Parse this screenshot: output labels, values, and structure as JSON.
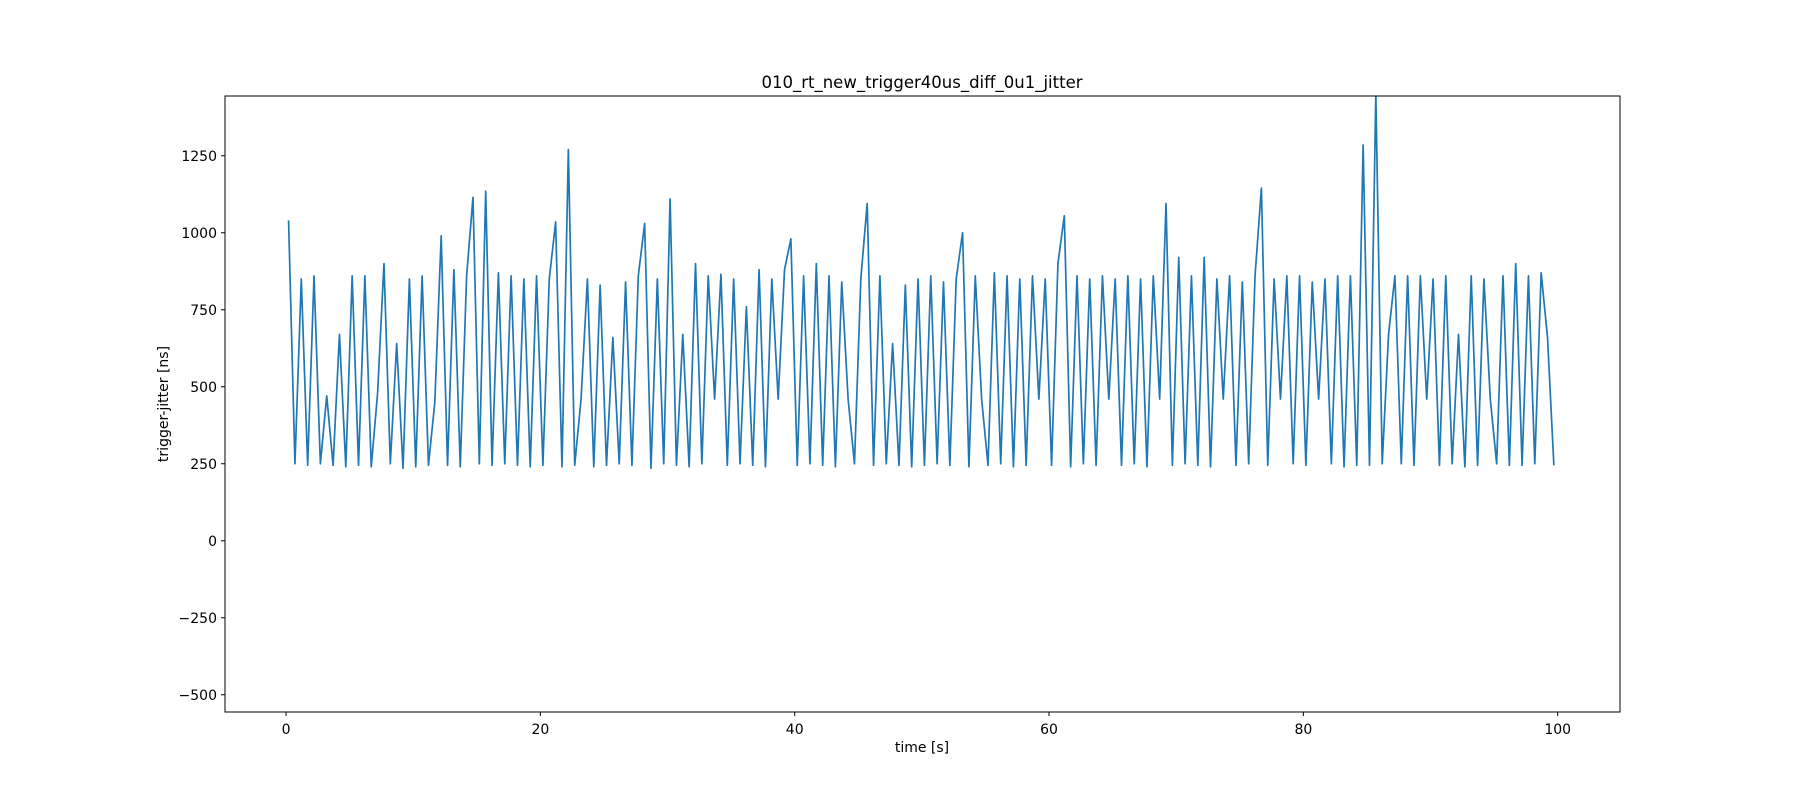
{
  "chart_data": {
    "type": "line",
    "title": "010_rt_new_trigger40us_diff_0u1_jitter",
    "x_label": "time [s]",
    "y_label": "trigger-jitter [ns]",
    "x": [
      0.2,
      0.7,
      1.2,
      1.7,
      2.2,
      2.7,
      3.2,
      3.7,
      4.2,
      4.7,
      5.2,
      5.7,
      6.2,
      6.7,
      7.2,
      7.7,
      8.2,
      8.7,
      9.2,
      9.7,
      10.2,
      10.7,
      11.2,
      11.7,
      12.2,
      12.7,
      13.2,
      13.7,
      14.2,
      14.7,
      15.2,
      15.7,
      16.2,
      16.7,
      17.2,
      17.7,
      18.2,
      18.7,
      19.2,
      19.7,
      20.2,
      20.7,
      21.2,
      21.7,
      22.2,
      22.7,
      23.2,
      23.7,
      24.2,
      24.7,
      25.2,
      25.7,
      26.2,
      26.7,
      27.2,
      27.7,
      28.2,
      28.7,
      29.2,
      29.7,
      30.2,
      30.7,
      31.2,
      31.7,
      32.2,
      32.7,
      33.2,
      33.7,
      34.2,
      34.7,
      35.2,
      35.7,
      36.2,
      36.7,
      37.2,
      37.7,
      38.2,
      38.7,
      39.2,
      39.7,
      40.2,
      40.7,
      41.2,
      41.7,
      42.2,
      42.7,
      43.2,
      43.7,
      44.2,
      44.7,
      45.2,
      45.7,
      46.2,
      46.7,
      47.2,
      47.7,
      48.2,
      48.7,
      49.2,
      49.7,
      50.2,
      50.7,
      51.2,
      51.7,
      52.2,
      52.7,
      53.2,
      53.7,
      54.2,
      54.7,
      55.2,
      55.7,
      56.2,
      56.7,
      57.2,
      57.7,
      58.2,
      58.7,
      59.2,
      59.7,
      60.2,
      60.7,
      61.2,
      61.7,
      62.2,
      62.7,
      63.2,
      63.7,
      64.2,
      64.7,
      65.2,
      65.7,
      66.2,
      66.7,
      67.2,
      67.7,
      68.2,
      68.7,
      69.2,
      69.7,
      70.2,
      70.7,
      71.2,
      71.7,
      72.2,
      72.7,
      73.2,
      73.7,
      74.2,
      74.7,
      75.2,
      75.7,
      76.2,
      76.7,
      77.2,
      77.7,
      78.2,
      78.7,
      79.2,
      79.7,
      80.2,
      80.7,
      81.2,
      81.7,
      82.2,
      82.7,
      83.2,
      83.7,
      84.2,
      84.7,
      85.2,
      85.7,
      86.2,
      86.7,
      87.2,
      87.7,
      88.2,
      88.7,
      89.2,
      89.7,
      90.2,
      90.7,
      91.2,
      91.7,
      92.2,
      92.7,
      93.2,
      93.7,
      94.2,
      94.7,
      95.2,
      95.7,
      96.2,
      96.7,
      97.2,
      97.7,
      98.2,
      98.7,
      99.2,
      99.7
    ],
    "series": [
      {
        "color": "#1f77b4",
        "values": [
          1040,
          250,
          850,
          245,
          860,
          250,
          470,
          245,
          670,
          240,
          860,
          245,
          860,
          240,
          480,
          900,
          250,
          640,
          235,
          850,
          240,
          860,
          245,
          450,
          990,
          245,
          880,
          240,
          860,
          1115,
          250,
          1135,
          245,
          870,
          250,
          860,
          245,
          850,
          240,
          860,
          245,
          850,
          1035,
          240,
          1270,
          245,
          460,
          850,
          240,
          830,
          245,
          660,
          250,
          840,
          245,
          860,
          1030,
          235,
          850,
          250,
          1110,
          245,
          670,
          240,
          900,
          250,
          860,
          460,
          865,
          245,
          850,
          250,
          760,
          245,
          880,
          240,
          850,
          460,
          880,
          980,
          245,
          860,
          250,
          900,
          245,
          860,
          240,
          840,
          460,
          250,
          850,
          1095,
          245,
          860,
          250,
          640,
          245,
          830,
          240,
          850,
          245,
          860,
          250,
          840,
          245,
          850,
          1000,
          240,
          860,
          460,
          245,
          870,
          250,
          860,
          240,
          850,
          245,
          860,
          460,
          850,
          245,
          900,
          1055,
          240,
          860,
          250,
          850,
          245,
          860,
          460,
          850,
          245,
          860,
          250,
          850,
          240,
          860,
          460,
          1095,
          245,
          920,
          250,
          860,
          245,
          920,
          240,
          850,
          460,
          860,
          245,
          840,
          250,
          860,
          1145,
          245,
          850,
          460,
          860,
          250,
          860,
          245,
          840,
          460,
          850,
          250,
          860,
          240,
          860,
          245,
          1285,
          245,
          1450,
          250,
          670,
          860,
          250,
          860,
          245,
          860,
          460,
          850,
          245,
          860,
          250,
          670,
          240,
          860,
          245,
          850,
          460,
          250,
          860,
          245,
          900,
          245,
          860,
          250,
          870,
          660,
          245
        ]
      }
    ],
    "xlim": [
      -4.8,
      104.9
    ],
    "ylim": [
      -556,
      1444
    ],
    "xticks": [
      0,
      20,
      40,
      60,
      80,
      100
    ],
    "yticks": [
      {
        "value": -500,
        "label": "−500"
      },
      {
        "value": -250,
        "label": "−250"
      },
      0,
      250,
      500,
      750,
      1000,
      1250
    ]
  }
}
